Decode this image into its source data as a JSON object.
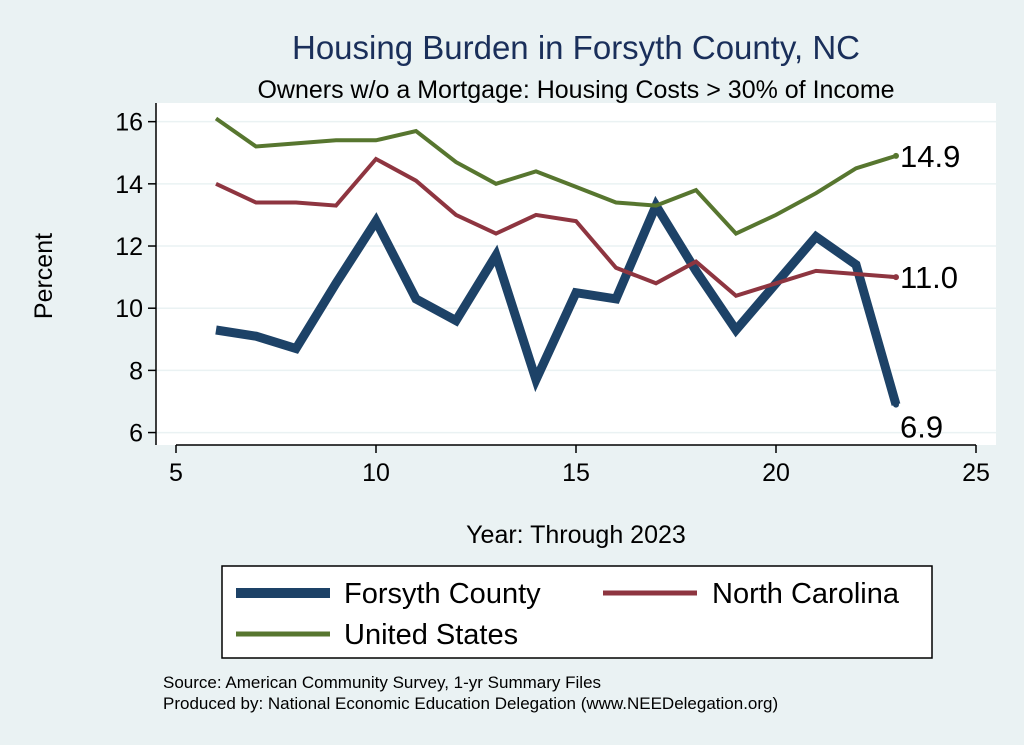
{
  "colors": {
    "background": "#eaf2f3",
    "plot_background": "#ffffff",
    "grid": "#eaf2f3",
    "title": "#1a2f5a"
  },
  "chart_data": {
    "type": "line",
    "title": "Housing Burden in Forsyth County, NC",
    "subtitle": "Owners w/o a Mortgage: Housing Costs > 30% of Income",
    "xlabel": "Year: Through 2023",
    "ylabel": "Percent",
    "xlim": [
      4.5,
      25.5
    ],
    "ylim": [
      5.6,
      16.6
    ],
    "xticks": [
      5,
      10,
      15,
      20,
      25
    ],
    "yticks": [
      6,
      8,
      10,
      12,
      14,
      16
    ],
    "grid": true,
    "legend_position": "bottom",
    "x": [
      6,
      7,
      8,
      9,
      10,
      11,
      12,
      13,
      14,
      15,
      16,
      17,
      18,
      19,
      20,
      21,
      22,
      23
    ],
    "series": [
      {
        "name": "Forsyth County",
        "color": "#1d4267",
        "width": 9,
        "values": [
          9.3,
          9.1,
          8.7,
          10.8,
          12.8,
          10.3,
          9.6,
          11.7,
          7.7,
          10.5,
          10.3,
          13.3,
          11.2,
          9.3,
          10.8,
          12.3,
          11.4,
          6.9
        ],
        "end_label": "6.9"
      },
      {
        "name": "North Carolina",
        "color": "#8e3540",
        "width": 4,
        "values": [
          14.0,
          13.4,
          13.4,
          13.3,
          14.8,
          14.1,
          13.0,
          12.4,
          13.0,
          12.8,
          11.3,
          10.8,
          11.5,
          10.4,
          10.8,
          11.2,
          11.1,
          11.0
        ],
        "end_label": "11.0"
      },
      {
        "name": "United States",
        "color": "#57762f",
        "width": 4,
        "values": [
          16.1,
          15.2,
          15.3,
          15.4,
          15.4,
          15.7,
          14.7,
          14.0,
          14.4,
          13.9,
          13.4,
          13.3,
          13.8,
          12.4,
          13.0,
          13.7,
          14.5,
          14.9
        ],
        "end_label": "14.9"
      }
    ],
    "source_lines": [
      "Source: American Community Survey, 1-yr Summary Files",
      "Produced by: National Economic Education Delegation (www.NEEDelegation.org)"
    ]
  }
}
